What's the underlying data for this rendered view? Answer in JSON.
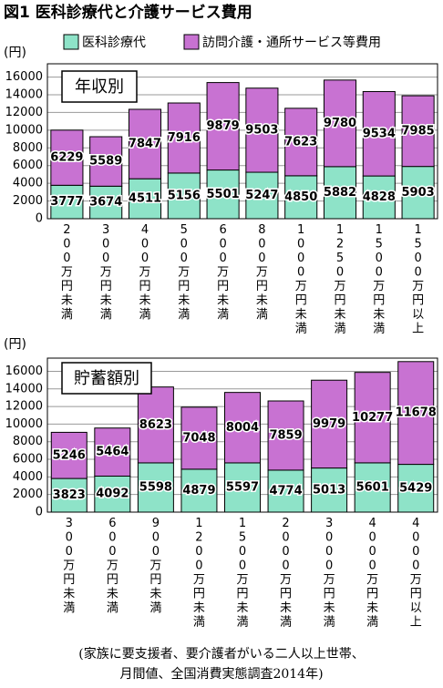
{
  "title": "図1 医科診療代と介護サービス費用",
  "footnote": [
    "(家族に要支援者、要介護者がいる二人以上世帯、",
    "月間値、全国消費実態調査2014年)"
  ],
  "chart_data": [
    {
      "type": "bar",
      "stacked": true,
      "ylabel": "(円)",
      "annotation": "年収別",
      "categories": [
        "200万円未満",
        "300万円未満",
        "400万円未満",
        "500万円未満",
        "600万円未満",
        "800万円未満",
        "1000万円未満",
        "1250万円未満",
        "1500万円未満",
        "1500万円以上"
      ],
      "series": [
        {
          "name": "医科診療代",
          "color": "#8ee3c8",
          "values": [
            3777,
            3674,
            4511,
            5156,
            5501,
            5247,
            4850,
            5882,
            4828,
            5903
          ]
        },
        {
          "name": "訪問介護・通所サービス等費用",
          "color": "#c872d2",
          "values": [
            6229,
            5589,
            7847,
            7916,
            9879,
            9503,
            7623,
            9780,
            9534,
            7985
          ]
        }
      ],
      "ylim": [
        0,
        17500
      ],
      "yticks": [
        0,
        2000,
        4000,
        6000,
        8000,
        10000,
        12000,
        14000,
        16000
      ],
      "grid": true
    },
    {
      "type": "bar",
      "stacked": true,
      "ylabel": "(円)",
      "annotation": "貯蓄額別",
      "categories": [
        "300万円未満",
        "600万円未満",
        "900万円未満",
        "1200万円未満",
        "1500万円未満",
        "2000万円未満",
        "3000万円未満",
        "4000万円未満",
        "4000万円以上"
      ],
      "series": [
        {
          "color": "#8ee3c8",
          "values": [
            3823,
            4092,
            5598,
            4879,
            5597,
            4774,
            5013,
            5601,
            5429
          ]
        },
        {
          "color": "#c872d2",
          "values": [
            5246,
            5464,
            8623,
            7048,
            8004,
            7859,
            9979,
            10277,
            11678
          ]
        }
      ],
      "ylim": [
        0,
        17500
      ],
      "yticks": [
        0,
        2000,
        4000,
        6000,
        8000,
        10000,
        12000,
        14000,
        16000
      ],
      "grid": true
    }
  ]
}
